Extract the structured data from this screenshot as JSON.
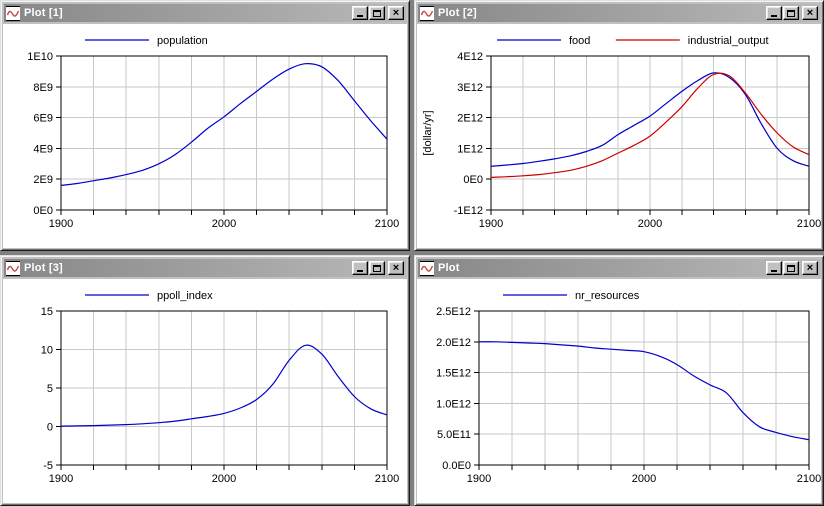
{
  "desktop": {
    "background": "#808080"
  },
  "window_controls": {
    "close_glyph": "×"
  },
  "windows": [
    {
      "title": "Plot [1]"
    },
    {
      "title": "Plot [2]"
    },
    {
      "title": "Plot [3]"
    },
    {
      "title": "Plot"
    }
  ],
  "colors": {
    "series_blue": "#0000cc",
    "series_red": "#cc0000",
    "grid": "#c8c8c8",
    "frame": "#000000",
    "text": "#000000"
  },
  "chart_data": [
    {
      "type": "line",
      "title": "",
      "xlabel": "",
      "ylabel": "",
      "grid": true,
      "legend_position": "top",
      "x": {
        "min": 1900,
        "max": 2100,
        "tick_step": 20,
        "label_ticks": [
          1900,
          2000,
          2100
        ]
      },
      "y": {
        "min": 0,
        "max": 10000000000.0,
        "ticks": [
          {
            "v": 0,
            "label": "0E0"
          },
          {
            "v": 2000000000.0,
            "label": "2E9"
          },
          {
            "v": 4000000000.0,
            "label": "4E9"
          },
          {
            "v": 6000000000.0,
            "label": "6E9"
          },
          {
            "v": 8000000000.0,
            "label": "8E9"
          },
          {
            "v": 10000000000.0,
            "label": "1E10"
          }
        ]
      },
      "margins": {
        "l": 58,
        "t": 32,
        "r": 20,
        "b": 38
      },
      "series": [
        {
          "name": "population",
          "color": "#0000cc",
          "points": [
            [
              1900,
              1600000000.0
            ],
            [
              1910,
              1720000000.0
            ],
            [
              1920,
              1900000000.0
            ],
            [
              1930,
              2080000000.0
            ],
            [
              1940,
              2300000000.0
            ],
            [
              1950,
              2580000000.0
            ],
            [
              1960,
              3000000000.0
            ],
            [
              1970,
              3600000000.0
            ],
            [
              1980,
              4400000000.0
            ],
            [
              1990,
              5300000000.0
            ],
            [
              2000,
              6050000000.0
            ],
            [
              2010,
              6900000000.0
            ],
            [
              2020,
              7700000000.0
            ],
            [
              2030,
              8500000000.0
            ],
            [
              2040,
              9150000000.0
            ],
            [
              2050,
              9500000000.0
            ],
            [
              2060,
              9300000000.0
            ],
            [
              2070,
              8400000000.0
            ],
            [
              2080,
              7100000000.0
            ],
            [
              2090,
              5800000000.0
            ],
            [
              2100,
              4600000000.0
            ]
          ]
        }
      ]
    },
    {
      "type": "line",
      "title": "",
      "xlabel": "",
      "ylabel": "[dollar/yr]",
      "grid": true,
      "legend_position": "top",
      "x": {
        "min": 1900,
        "max": 2100,
        "tick_step": 20,
        "label_ticks": [
          1900,
          2000,
          2100
        ]
      },
      "y": {
        "min": -1000000000000.0,
        "max": 4000000000000.0,
        "ticks": [
          {
            "v": -1000000000000.0,
            "label": "-1E12"
          },
          {
            "v": 0,
            "label": "0E0"
          },
          {
            "v": 1000000000000.0,
            "label": "1E12"
          },
          {
            "v": 2000000000000.0,
            "label": "2E12"
          },
          {
            "v": 3000000000000.0,
            "label": "3E12"
          },
          {
            "v": 4000000000000.0,
            "label": "4E12"
          }
        ]
      },
      "margins": {
        "l": 74,
        "t": 32,
        "r": 12,
        "b": 38
      },
      "series": [
        {
          "name": "food",
          "color": "#0000cc",
          "points": [
            [
              1900,
              420000000000.0
            ],
            [
              1910,
              460000000000.0
            ],
            [
              1920,
              510000000000.0
            ],
            [
              1930,
              580000000000.0
            ],
            [
              1940,
              660000000000.0
            ],
            [
              1950,
              760000000000.0
            ],
            [
              1960,
              900000000000.0
            ],
            [
              1970,
              1100000000000.0
            ],
            [
              1980,
              1450000000000.0
            ],
            [
              1990,
              1750000000000.0
            ],
            [
              2000,
              2050000000000.0
            ],
            [
              2010,
              2450000000000.0
            ],
            [
              2020,
              2850000000000.0
            ],
            [
              2030,
              3200000000000.0
            ],
            [
              2040,
              3450000000000.0
            ],
            [
              2050,
              3300000000000.0
            ],
            [
              2060,
              2750000000000.0
            ],
            [
              2070,
              1800000000000.0
            ],
            [
              2080,
              1000000000000.0
            ],
            [
              2090,
              600000000000.0
            ],
            [
              2100,
              420000000000.0
            ]
          ]
        },
        {
          "name": "industrial_output",
          "color": "#cc0000",
          "points": [
            [
              1900,
              60000000000.0
            ],
            [
              1910,
              80000000000.0
            ],
            [
              1920,
              110000000000.0
            ],
            [
              1930,
              150000000000.0
            ],
            [
              1940,
              210000000000.0
            ],
            [
              1950,
              290000000000.0
            ],
            [
              1960,
              420000000000.0
            ],
            [
              1970,
              600000000000.0
            ],
            [
              1980,
              850000000000.0
            ],
            [
              1990,
              1100000000000.0
            ],
            [
              2000,
              1400000000000.0
            ],
            [
              2010,
              1850000000000.0
            ],
            [
              2020,
              2350000000000.0
            ],
            [
              2030,
              2950000000000.0
            ],
            [
              2040,
              3400000000000.0
            ],
            [
              2050,
              3350000000000.0
            ],
            [
              2060,
              2800000000000.0
            ],
            [
              2070,
              2100000000000.0
            ],
            [
              2080,
              1500000000000.0
            ],
            [
              2090,
              1050000000000.0
            ],
            [
              2100,
              800000000000.0
            ]
          ]
        }
      ]
    },
    {
      "type": "line",
      "title": "",
      "xlabel": "",
      "ylabel": "",
      "grid": true,
      "legend_position": "top",
      "x": {
        "min": 1900,
        "max": 2100,
        "tick_step": 20,
        "label_ticks": [
          1900,
          2000,
          2100
        ]
      },
      "y": {
        "min": -5,
        "max": 15,
        "ticks": [
          {
            "v": -5,
            "label": "-5"
          },
          {
            "v": 0,
            "label": "0"
          },
          {
            "v": 5,
            "label": "5"
          },
          {
            "v": 10,
            "label": "10"
          },
          {
            "v": 15,
            "label": "15"
          }
        ]
      },
      "margins": {
        "l": 58,
        "t": 32,
        "r": 20,
        "b": 38
      },
      "series": [
        {
          "name": "ppoll_index",
          "color": "#0000cc",
          "points": [
            [
              1900,
              0.05
            ],
            [
              1910,
              0.08
            ],
            [
              1920,
              0.12
            ],
            [
              1930,
              0.18
            ],
            [
              1940,
              0.25
            ],
            [
              1950,
              0.35
            ],
            [
              1960,
              0.5
            ],
            [
              1970,
              0.7
            ],
            [
              1980,
              1.0
            ],
            [
              1990,
              1.3
            ],
            [
              2000,
              1.7
            ],
            [
              2010,
              2.4
            ],
            [
              2020,
              3.5
            ],
            [
              2030,
              5.5
            ],
            [
              2040,
              8.6
            ],
            [
              2050,
              10.55
            ],
            [
              2060,
              9.4
            ],
            [
              2070,
              6.5
            ],
            [
              2080,
              3.9
            ],
            [
              2090,
              2.3
            ],
            [
              2100,
              1.5
            ]
          ]
        }
      ]
    },
    {
      "type": "line",
      "title": "",
      "xlabel": "",
      "ylabel": "",
      "grid": true,
      "legend_position": "top",
      "x": {
        "min": 1900,
        "max": 2100,
        "tick_step": 20,
        "label_ticks": [
          1900,
          2000,
          2100
        ]
      },
      "y": {
        "min": 0,
        "max": 2500000000000.0,
        "ticks": [
          {
            "v": 0,
            "label": "0.0E0"
          },
          {
            "v": 500000000000.0,
            "label": "5.0E11"
          },
          {
            "v": 1000000000000.0,
            "label": "1.0E12"
          },
          {
            "v": 1500000000000.0,
            "label": "1.5E12"
          },
          {
            "v": 2000000000000.0,
            "label": "2.0E12"
          },
          {
            "v": 2500000000000.0,
            "label": "2.5E12"
          }
        ]
      },
      "margins": {
        "l": 62,
        "t": 32,
        "r": 12,
        "b": 38
      },
      "series": [
        {
          "name": "nr_resources",
          "color": "#0000cc",
          "points": [
            [
              1900,
              2000000000000.0
            ],
            [
              1910,
              2000000000000.0
            ],
            [
              1920,
              1990000000000.0
            ],
            [
              1930,
              1980000000000.0
            ],
            [
              1940,
              1970000000000.0
            ],
            [
              1950,
              1950000000000.0
            ],
            [
              1960,
              1930000000000.0
            ],
            [
              1970,
              1900000000000.0
            ],
            [
              1980,
              1880000000000.0
            ],
            [
              1990,
              1860000000000.0
            ],
            [
              2000,
              1840000000000.0
            ],
            [
              2010,
              1760000000000.0
            ],
            [
              2020,
              1630000000000.0
            ],
            [
              2030,
              1450000000000.0
            ],
            [
              2040,
              1300000000000.0
            ],
            [
              2050,
              1170000000000.0
            ],
            [
              2060,
              850000000000.0
            ],
            [
              2070,
              620000000000.0
            ],
            [
              2080,
              530000000000.0
            ],
            [
              2090,
              460000000000.0
            ],
            [
              2100,
              410000000000.0
            ]
          ]
        }
      ]
    }
  ]
}
